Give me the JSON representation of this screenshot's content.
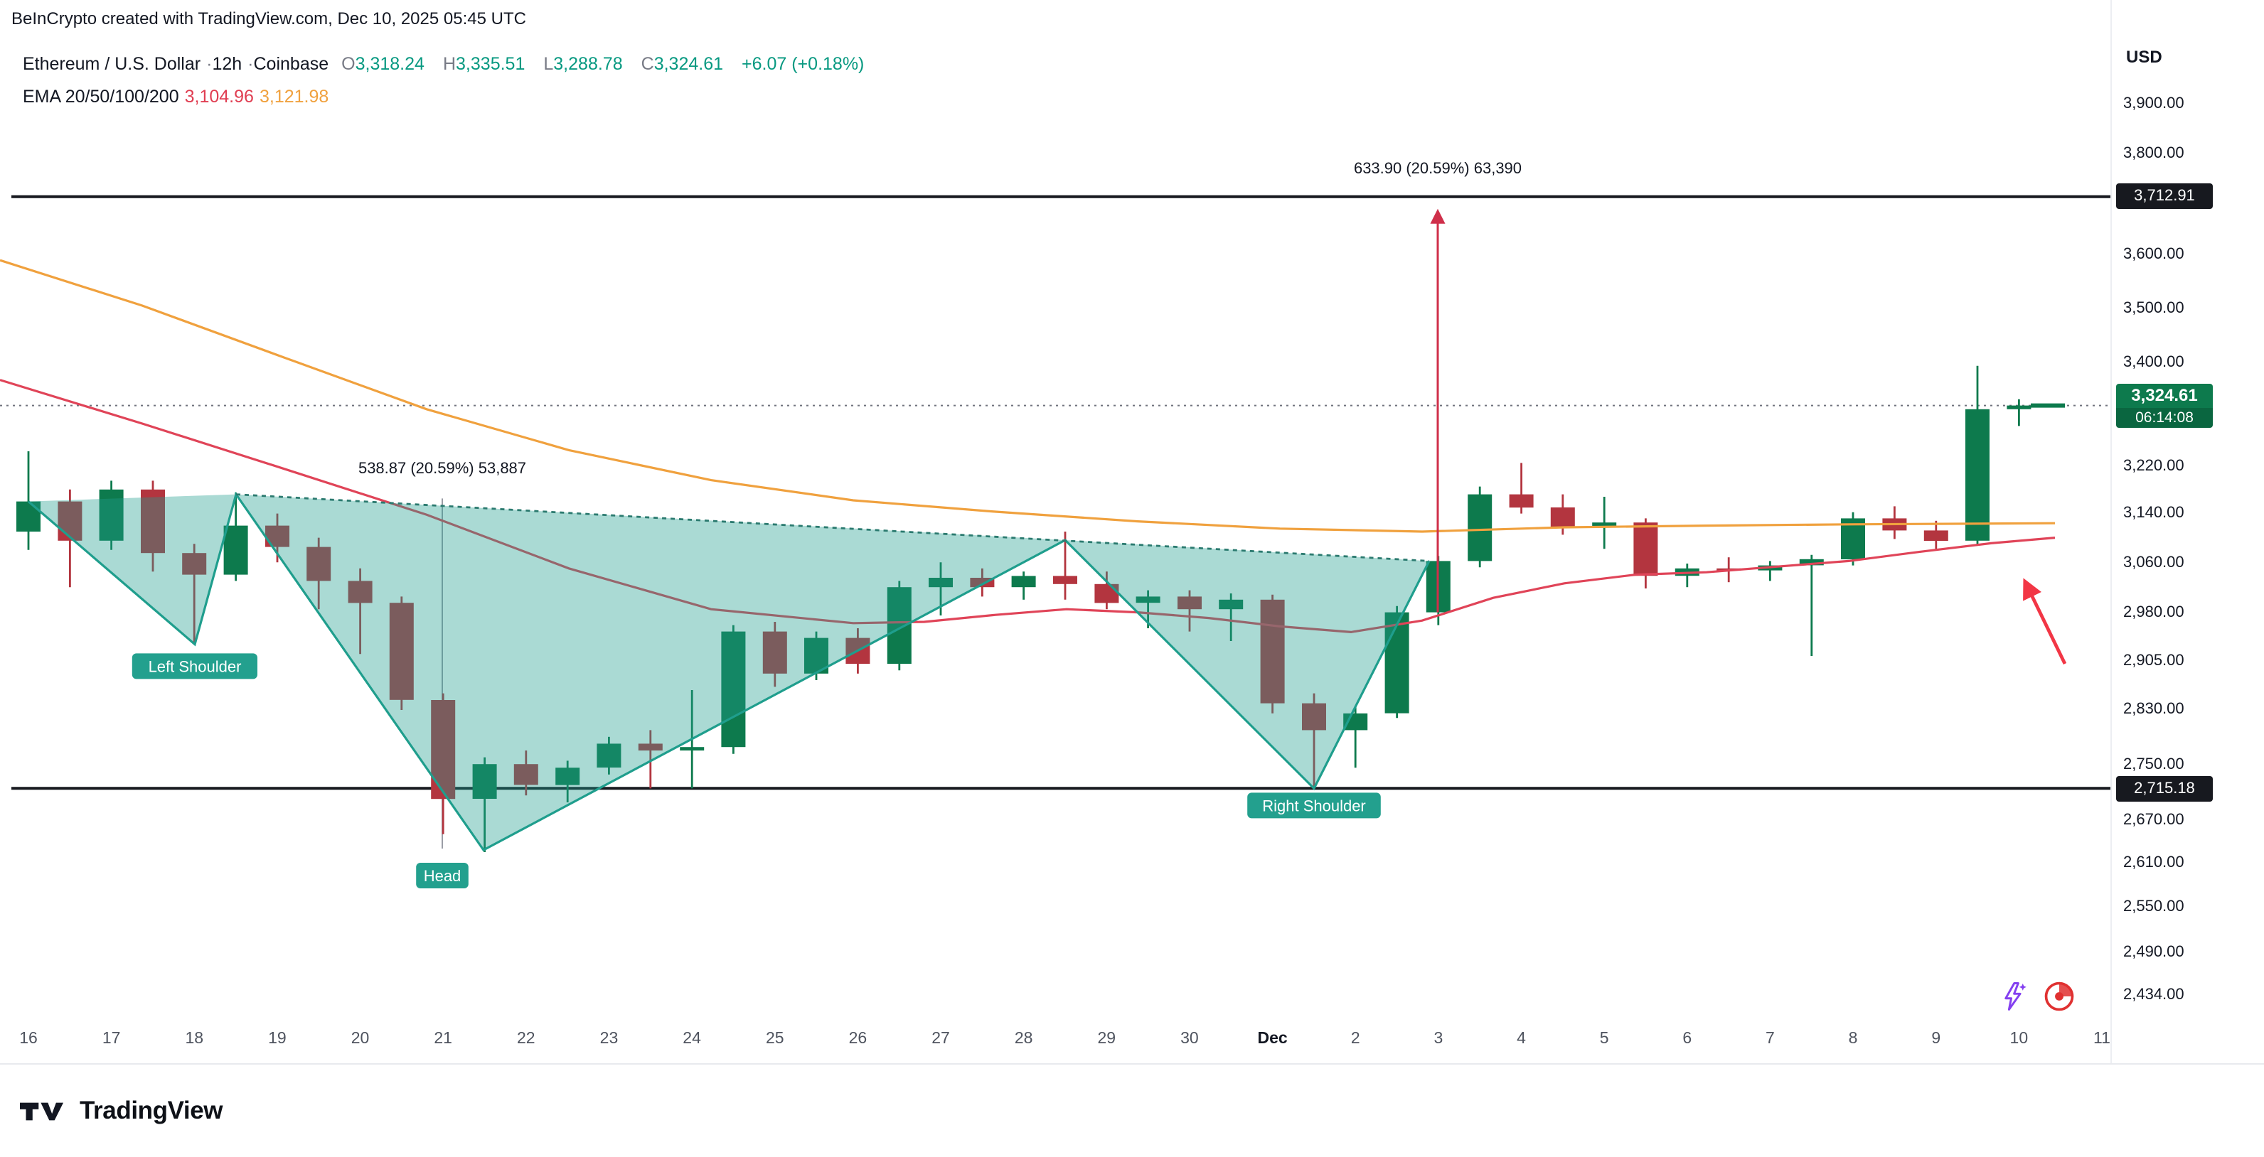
{
  "header": {
    "attribution": "BeInCrypto created with TradingView.com, Dec 10, 2025 05:45 UTC"
  },
  "legend": {
    "symbol": "Ethereum / U.S. Dollar",
    "separator": "·",
    "interval": "12h",
    "exchange": "Coinbase",
    "ohlc": {
      "o_label": "O",
      "o_value": "3,318.24",
      "h_label": "H",
      "h_value": "3,335.51",
      "l_label": "L",
      "l_value": "3,288.78",
      "c_label": "C",
      "c_value": "3,324.61",
      "change": "+6.07 (+0.18%)"
    },
    "indicator": {
      "name": "EMA 20/50/100/200",
      "value_red": "3,104.96",
      "value_orange": "3,121.98"
    }
  },
  "price_axis": {
    "currency": "USD",
    "labels": [
      "3,900.00",
      "3,800.00",
      "3,600.00",
      "3,500.00",
      "3,400.00",
      "3,220.00",
      "3,140.00",
      "3,060.00",
      "2,980.00",
      "2,905.00",
      "2,830.00",
      "2,750.00",
      "2,670.00",
      "2,610.00",
      "2,550.00",
      "2,490.00",
      "2,434.00"
    ],
    "level_badges": [
      {
        "text": "3,712.91",
        "price": 3712.91
      },
      {
        "text": "2,715.18",
        "price": 2715.18
      }
    ],
    "current_badge": {
      "text": "3,324.61",
      "countdown": "06:14:08",
      "price": 3324.61
    }
  },
  "time_axis": {
    "labels": [
      "16",
      "17",
      "18",
      "19",
      "20",
      "21",
      "22",
      "23",
      "24",
      "25",
      "26",
      "27",
      "28",
      "29",
      "30",
      "Dec",
      "2",
      "3",
      "4",
      "5",
      "6",
      "7",
      "8",
      "9",
      "10",
      "11"
    ],
    "bold_label": "Dec"
  },
  "chart_data": {
    "type": "candlestick",
    "title": "Ethereum / U.S. Dollar · 12h · Coinbase",
    "interval": "12h",
    "scale": "log",
    "y_ticks": [
      3900,
      3800,
      3600,
      3500,
      3400,
      3220,
      3140,
      3060,
      2980,
      2905,
      2830,
      2750,
      2670,
      2610,
      2550,
      2490,
      2434
    ],
    "current_price": 3324.61,
    "levels": [
      {
        "price": 3712.91,
        "label": "3,712.91"
      },
      {
        "price": 2715.18,
        "label": "2,715.18"
      }
    ],
    "candles": {
      "per_day": 2,
      "start": "Nov 16",
      "end": "Dec 10",
      "ohlc": [
        [
          3110,
          3245,
          3080,
          3160
        ],
        [
          3160,
          3180,
          3020,
          3095
        ],
        [
          3095,
          3195,
          3080,
          3180
        ],
        [
          3180,
          3195,
          3045,
          3075
        ],
        [
          3075,
          3090,
          2930,
          3040
        ],
        [
          3040,
          3175,
          3030,
          3120
        ],
        [
          3120,
          3140,
          3060,
          3085
        ],
        [
          3085,
          3100,
          2985,
          3030
        ],
        [
          3030,
          3050,
          2915,
          2995
        ],
        [
          2995,
          3005,
          2830,
          2845
        ],
        [
          2845,
          2855,
          2650,
          2700
        ],
        [
          2700,
          2760,
          2625,
          2750
        ],
        [
          2750,
          2770,
          2705,
          2720
        ],
        [
          2720,
          2755,
          2695,
          2745
        ],
        [
          2745,
          2790,
          2735,
          2780
        ],
        [
          2780,
          2800,
          2715,
          2770
        ],
        [
          2770,
          2860,
          2715,
          2775
        ],
        [
          2775,
          2960,
          2765,
          2950
        ],
        [
          2950,
          2965,
          2865,
          2885
        ],
        [
          2885,
          2950,
          2875,
          2940
        ],
        [
          2940,
          2955,
          2885,
          2900
        ],
        [
          2900,
          3030,
          2890,
          3020
        ],
        [
          3020,
          3060,
          2975,
          3035
        ],
        [
          3035,
          3050,
          3005,
          3020
        ],
        [
          3020,
          3045,
          3000,
          3038
        ],
        [
          3038,
          3110,
          3000,
          3025
        ],
        [
          3025,
          3045,
          2985,
          2995
        ],
        [
          2995,
          3015,
          2955,
          3005
        ],
        [
          3005,
          3015,
          2950,
          2985
        ],
        [
          2985,
          3010,
          2935,
          3000
        ],
        [
          3000,
          3008,
          2825,
          2840
        ],
        [
          2840,
          2855,
          2715,
          2800
        ],
        [
          2800,
          2835,
          2745,
          2825
        ],
        [
          2825,
          2990,
          2818,
          2980
        ],
        [
          2980,
          3070,
          2960,
          3062
        ],
        [
          3062,
          3185,
          3052,
          3172
        ],
        [
          3172,
          3225,
          3140,
          3150
        ],
        [
          3150,
          3172,
          3105,
          3118
        ],
        [
          3118,
          3168,
          3082,
          3125
        ],
        [
          3125,
          3132,
          3018,
          3038
        ],
        [
          3038,
          3058,
          3020,
          3050
        ],
        [
          3050,
          3068,
          3028,
          3047
        ],
        [
          3047,
          3062,
          3030,
          3055
        ],
        [
          3055,
          3072,
          2912,
          3065
        ],
        [
          3065,
          3142,
          3055,
          3132
        ],
        [
          3132,
          3152,
          3098,
          3112
        ],
        [
          3112,
          3128,
          3082,
          3095
        ],
        [
          3095,
          3395,
          3088,
          3318
        ],
        [
          3318.24,
          3335.51,
          3288.78,
          3324.61
        ]
      ]
    },
    "emas": [
      {
        "id": "ema-line-orange",
        "label": "EMA (orange)",
        "last_value": 3121.98,
        "color": "#f0a13e",
        "points": [
          [
            0,
            3590
          ],
          [
            100,
            3505
          ],
          [
            200,
            3410
          ],
          [
            300,
            3318
          ],
          [
            400,
            3247
          ],
          [
            500,
            3196
          ],
          [
            600,
            3162
          ],
          [
            700,
            3143
          ],
          [
            800,
            3127
          ],
          [
            900,
            3115
          ],
          [
            1000,
            3110
          ],
          [
            1100,
            3117
          ],
          [
            1200,
            3120
          ],
          [
            1300,
            3122
          ],
          [
            1445,
            3124
          ]
        ]
      },
      {
        "id": "ema-line-red",
        "label": "EMA (red)",
        "last_value": 3104.96,
        "color": "#e04458",
        "points": [
          [
            0,
            3370
          ],
          [
            100,
            3293
          ],
          [
            200,
            3215
          ],
          [
            300,
            3138
          ],
          [
            400,
            3050
          ],
          [
            500,
            2985
          ],
          [
            600,
            2963
          ],
          [
            650,
            2965
          ],
          [
            700,
            2976
          ],
          [
            750,
            2985
          ],
          [
            800,
            2980
          ],
          [
            850,
            2971
          ],
          [
            900,
            2958
          ],
          [
            950,
            2949
          ],
          [
            1000,
            2967
          ],
          [
            1050,
            3003
          ],
          [
            1100,
            3026
          ],
          [
            1150,
            3040
          ],
          [
            1200,
            3044
          ],
          [
            1250,
            3053
          ],
          [
            1300,
            3062
          ],
          [
            1350,
            3077
          ],
          [
            1400,
            3091
          ],
          [
            1445,
            3100
          ]
        ]
      }
    ],
    "pattern": {
      "name": "Inverse Head and Shoulders",
      "points": {
        "A": [
          20,
          3160
        ],
        "B": [
          137,
          2930
        ],
        "C": [
          166,
          3172
        ],
        "D": [
          340,
          2628
        ],
        "E": [
          749,
          3096
        ],
        "F": [
          924,
          2715
        ],
        "G": [
          1005,
          3062
        ]
      },
      "outline": [
        "A",
        "B",
        "C",
        "D",
        "E",
        "F",
        "G"
      ],
      "triangles": [
        [
          "A",
          "B",
          "C"
        ],
        [
          "C",
          "D",
          "E"
        ],
        [
          "E",
          "F",
          "G"
        ]
      ],
      "badges": [
        {
          "text": "Left Shoulder",
          "x": 137,
          "price": 2905,
          "dy": 4
        },
        {
          "text": "Head",
          "x": 311,
          "price": 2628,
          "dy": 18
        },
        {
          "text": "Right Shoulder",
          "x": 924,
          "price": 2715,
          "dy": 12
        }
      ]
    },
    "measurements": [
      {
        "text": "633.90 (20.59%) 63,390",
        "x": 1011,
        "from_price": 2980,
        "to_price": 3700,
        "label_y": 92,
        "style": "arrow-up"
      },
      {
        "text": "538.87 (20.59%) 53,887",
        "x": 311,
        "from_price": 3165,
        "to_price": 2630,
        "label_y": 303,
        "style": "line"
      }
    ],
    "annotation_arrow": {
      "x1": 1452,
      "p1": 2900,
      "x2": 1424,
      "p2": 3040
    }
  },
  "footer": {
    "brand": "TradingView"
  },
  "colors": {
    "up": "#0d7a4d",
    "down": "#b3353f",
    "legend_green": "#089981",
    "ema_red": "#e03e52",
    "ema_orange": "#f0a13e",
    "pattern": "#1f9e8d",
    "pattern_fill": "rgba(31,158,141,0.38)",
    "pattern_neck": "#2b7a6f",
    "pattern_badge": "#23a08e",
    "level_line": "#17191f",
    "level_badge": "#17191f",
    "measure": "#cf2f4a",
    "accent_red": "#f23645",
    "muted": "#787b86",
    "text": "#131722"
  }
}
